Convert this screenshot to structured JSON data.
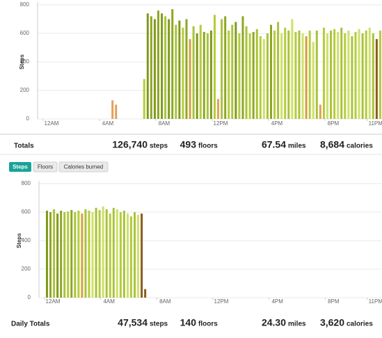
{
  "chart_data": [
    {
      "type": "bar",
      "y_label": "Steps",
      "x": [
        4.75,
        5.0,
        7.0,
        7.25,
        7.5,
        7.75,
        8.0,
        8.25,
        8.5,
        8.75,
        9.0,
        9.25,
        9.5,
        9.75,
        10.0,
        10.25,
        10.5,
        10.75,
        11.0,
        11.25,
        11.5,
        11.75,
        12.0,
        12.25,
        12.5,
        12.75,
        13.0,
        13.25,
        13.5,
        13.75,
        14.0,
        14.25,
        14.5,
        14.75,
        15.0,
        15.25,
        15.5,
        15.75,
        16.0,
        16.25,
        16.5,
        16.75,
        17.0,
        17.25,
        17.5,
        17.75,
        18.0,
        18.25,
        18.5,
        18.75,
        19.0,
        19.25,
        19.5,
        19.75,
        20.0,
        20.25,
        20.5,
        20.75,
        21.0,
        21.25,
        21.5,
        21.75,
        22.0,
        22.25,
        22.5,
        22.75,
        23.0,
        23.25,
        23.5,
        23.75
      ],
      "values": [
        130,
        100,
        280,
        740,
        720,
        700,
        760,
        740,
        720,
        700,
        770,
        660,
        690,
        640,
        700,
        560,
        650,
        600,
        660,
        610,
        600,
        620,
        730,
        140,
        700,
        720,
        620,
        660,
        680,
        600,
        720,
        650,
        600,
        610,
        630,
        580,
        560,
        600,
        660,
        620,
        680,
        600,
        640,
        620,
        700,
        610,
        620,
        600,
        580,
        620,
        540,
        620,
        100,
        640,
        600,
        620,
        630,
        610,
        640,
        600,
        620,
        580,
        610,
        630,
        600,
        620,
        640,
        600,
        560,
        620
      ],
      "colors": [
        "#e2a05a",
        "#e2a05a",
        "#b5cc3a",
        "#7f9a1c",
        "#8ea624",
        "#7f9a1c",
        "#8ea624",
        "#7f9a1c",
        "#a8c33a",
        "#7f9a1c",
        "#8ea624",
        "#a8c33a",
        "#7f9a1c",
        "#b5cc3a",
        "#8ea624",
        "#d4a03a",
        "#a8c33a",
        "#7f9a1c",
        "#b5cc3a",
        "#8ea624",
        "#a8c33a",
        "#7f9a1c",
        "#b5cc3a",
        "#e2a05a",
        "#a8c33a",
        "#8ea624",
        "#b5cc3a",
        "#a8c33a",
        "#7f9a1c",
        "#b5cc3a",
        "#8ea624",
        "#a8c33a",
        "#b5cc3a",
        "#8ea624",
        "#a8c33a",
        "#b5cc3a",
        "#cfe06a",
        "#a8c33a",
        "#8ea624",
        "#b5cc3a",
        "#a8c33a",
        "#cfe06a",
        "#b5cc3a",
        "#a8c33a",
        "#cfe06a",
        "#b5cc3a",
        "#a8c33a",
        "#cfe06a",
        "#d4a03a",
        "#b5cc3a",
        "#cfe06a",
        "#a8c33a",
        "#e2a05a",
        "#b5cc3a",
        "#cfe06a",
        "#a8c33a",
        "#b5cc3a",
        "#cfe06a",
        "#a8c33a",
        "#b5cc3a",
        "#cfe06a",
        "#a8c33a",
        "#b5cc3a",
        "#cfe06a",
        "#a8c33a",
        "#b5cc3a",
        "#cfe06a",
        "#a8c33a",
        "#8b5a1a",
        "#b5cc3a"
      ],
      "xlim": [
        0,
        24
      ],
      "xticks": [
        {
          "value": 0,
          "label": "12AM"
        },
        {
          "value": 4,
          "label": "4AM"
        },
        {
          "value": 8,
          "label": "8AM"
        },
        {
          "value": 12,
          "label": "12PM"
        },
        {
          "value": 16,
          "label": "4PM"
        },
        {
          "value": 20,
          "label": "8PM"
        },
        {
          "value": 23,
          "label": "11PM"
        }
      ],
      "ylim": [
        0,
        800
      ],
      "yticks": [
        0,
        200,
        400,
        600,
        800
      ],
      "grid": true,
      "totals": {
        "label": "Totals",
        "items": [
          {
            "value": "126,740",
            "unit": "steps"
          },
          {
            "value": "493",
            "unit": "floors"
          },
          {
            "value": "67.54",
            "unit": "miles"
          },
          {
            "value": "8,684",
            "unit": "calories"
          }
        ]
      }
    },
    {
      "type": "bar",
      "y_label": "Steps",
      "x": [
        0.0,
        0.25,
        0.5,
        0.75,
        1.0,
        1.25,
        1.5,
        1.75,
        2.0,
        2.25,
        2.5,
        2.75,
        3.0,
        3.25,
        3.5,
        3.75,
        4.0,
        4.25,
        4.5,
        4.75,
        5.0,
        5.25,
        5.5,
        5.75,
        6.0,
        6.25,
        6.5,
        6.75,
        7.0
      ],
      "values": [
        610,
        600,
        620,
        590,
        610,
        600,
        605,
        615,
        600,
        610,
        590,
        620,
        610,
        600,
        630,
        615,
        640,
        620,
        590,
        630,
        620,
        600,
        610,
        590,
        570,
        600,
        580,
        590,
        60
      ],
      "colors": [
        "#7f9a1c",
        "#8ea624",
        "#a8c33a",
        "#7f9a1c",
        "#8ea624",
        "#a8c33a",
        "#b5cc3a",
        "#8ea624",
        "#a8c33a",
        "#b5cc3a",
        "#d4a03a",
        "#a8c33a",
        "#b5cc3a",
        "#cfe06a",
        "#a8c33a",
        "#b5cc3a",
        "#cfe06a",
        "#a8c33a",
        "#b5cc3a",
        "#a8c33a",
        "#cfe06a",
        "#b5cc3a",
        "#a8c33a",
        "#cfe06a",
        "#b5cc3a",
        "#a8c33a",
        "#cfe06a",
        "#8b5a1a",
        "#8b5a1a"
      ],
      "xlim": [
        0,
        24
      ],
      "xticks": [
        {
          "value": 0,
          "label": "12AM"
        },
        {
          "value": 4,
          "label": "4AM"
        },
        {
          "value": 8,
          "label": "8AM"
        },
        {
          "value": 12,
          "label": "12PM"
        },
        {
          "value": 16,
          "label": "4PM"
        },
        {
          "value": 20,
          "label": "8PM"
        },
        {
          "value": 23,
          "label": "11PM"
        }
      ],
      "ylim": [
        0,
        800
      ],
      "yticks": [
        0,
        200,
        400,
        600,
        800
      ],
      "grid": true,
      "totals": {
        "label": "Daily Totals",
        "items": [
          {
            "value": "47,534",
            "unit": "steps"
          },
          {
            "value": "140",
            "unit": "floors"
          },
          {
            "value": "24.30",
            "unit": "miles"
          },
          {
            "value": "3,620",
            "unit": "calories"
          }
        ]
      }
    }
  ],
  "tabs": [
    "Steps",
    "Floors",
    "Calories burned"
  ]
}
